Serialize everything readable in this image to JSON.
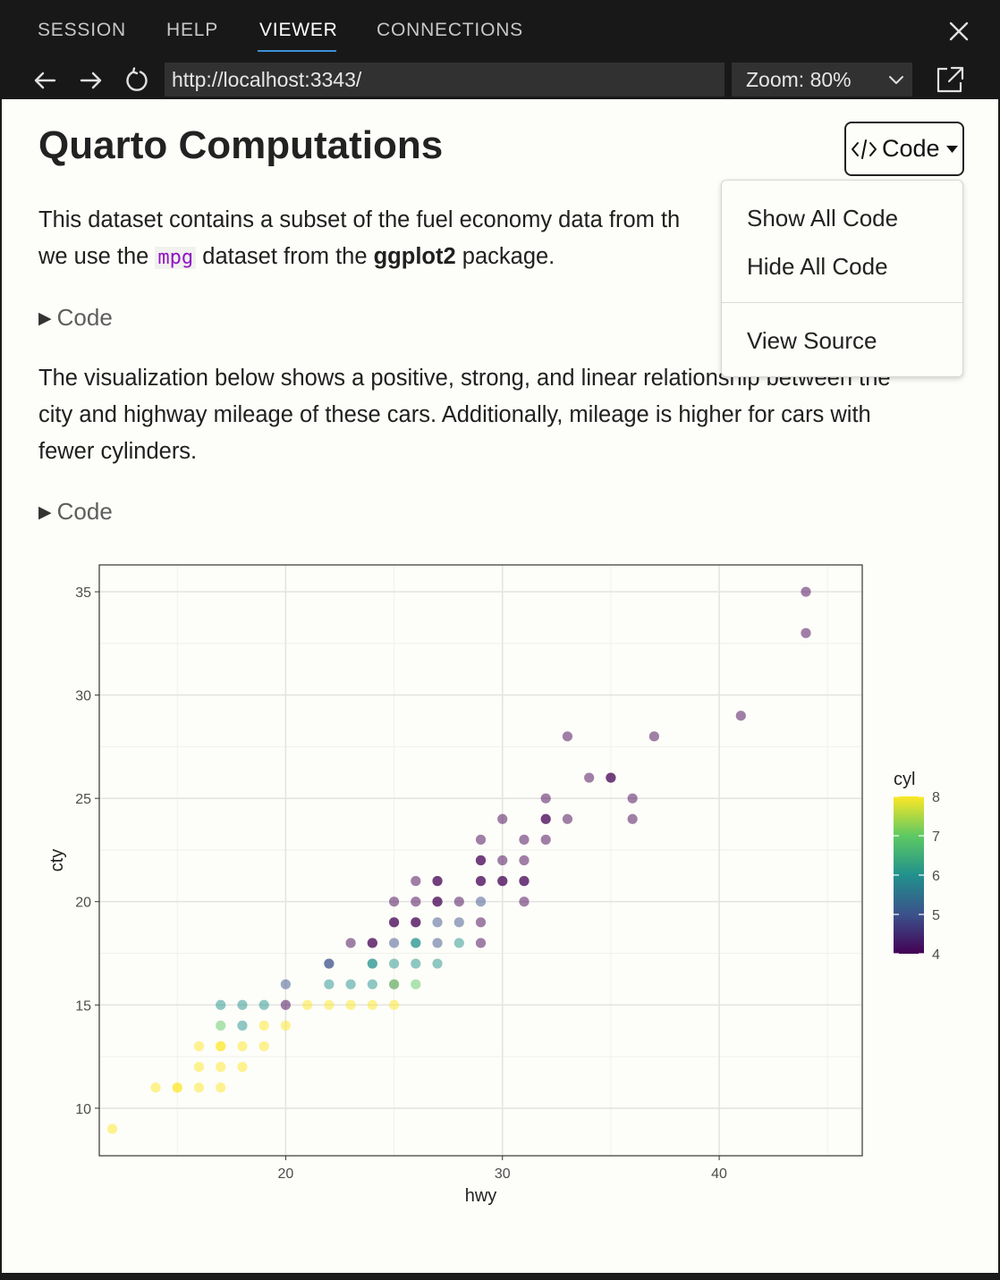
{
  "topbar": {
    "tabs": [
      {
        "label": "SESSION"
      },
      {
        "label": "HELP"
      },
      {
        "label": "VIEWER"
      },
      {
        "label": "CONNECTIONS"
      }
    ],
    "active_tab": "VIEWER"
  },
  "navbar": {
    "url": "http://localhost:3343/",
    "zoom": "Zoom: 80%"
  },
  "page": {
    "title": "Quarto Computations",
    "para1": {
      "line1": "This dataset contains a subset of the fuel economy data from th",
      "line2_a": "we use the ",
      "line2_code": "mpg",
      "line2_b": " dataset from the ",
      "line2_bold": "ggplot2",
      "line2_c": " package."
    },
    "code_toggle_label": "Code",
    "para2": {
      "line1": "The visualization below shows a positive, strong, and linear relationship between the",
      "line2": "city and highway mileage of these cars. Additionally, mileage is higher for cars with",
      "line3": "fewer cylinders."
    }
  },
  "code_menu": {
    "button_label": "Code",
    "items": [
      "Show All Code",
      "Hide All Code",
      "View Source"
    ]
  },
  "colors": {
    "accent": "#3d8fd6",
    "inline_code": "#8f14c4",
    "viridis_4": "#440154",
    "viridis_8": "#fde725"
  },
  "chart_data": {
    "type": "scatter",
    "title": "",
    "xlabel": "hwy",
    "ylabel": "cty",
    "xlim": [
      11.4,
      46.6
    ],
    "ylim": [
      7.7,
      36.3
    ],
    "xticks": [
      20,
      30,
      40
    ],
    "yticks": [
      10,
      15,
      20,
      25,
      30,
      35
    ],
    "grid": true,
    "legend": {
      "title": "cyl",
      "labels": [
        4,
        5,
        6,
        7,
        8
      ],
      "placement": "right"
    },
    "color_scale": "viridis",
    "points": [
      {
        "x": 44,
        "y": 35,
        "cyl": 4
      },
      {
        "x": 44,
        "y": 33,
        "cyl": 4
      },
      {
        "x": 41,
        "y": 29,
        "cyl": 4
      },
      {
        "x": 37,
        "y": 28,
        "cyl": 4
      },
      {
        "x": 33,
        "y": 28,
        "cyl": 4
      },
      {
        "x": 35,
        "y": 26,
        "cyl": 4
      },
      {
        "x": 35,
        "y": 26,
        "cyl": 4
      },
      {
        "x": 34,
        "y": 26,
        "cyl": 4
      },
      {
        "x": 36,
        "y": 25,
        "cyl": 4
      },
      {
        "x": 32,
        "y": 25,
        "cyl": 4
      },
      {
        "x": 36,
        "y": 24,
        "cyl": 4
      },
      {
        "x": 33,
        "y": 24,
        "cyl": 4
      },
      {
        "x": 32,
        "y": 24,
        "cyl": 4
      },
      {
        "x": 32,
        "y": 24,
        "cyl": 4
      },
      {
        "x": 30,
        "y": 24,
        "cyl": 4
      },
      {
        "x": 32,
        "y": 23,
        "cyl": 4
      },
      {
        "x": 31,
        "y": 23,
        "cyl": 4
      },
      {
        "x": 29,
        "y": 23,
        "cyl": 4
      },
      {
        "x": 29,
        "y": 22,
        "cyl": 4
      },
      {
        "x": 29,
        "y": 22,
        "cyl": 4
      },
      {
        "x": 30,
        "y": 22,
        "cyl": 4
      },
      {
        "x": 31,
        "y": 22,
        "cyl": 4
      },
      {
        "x": 29,
        "y": 21,
        "cyl": 4
      },
      {
        "x": 29,
        "y": 21,
        "cyl": 4
      },
      {
        "x": 30,
        "y": 21,
        "cyl": 4
      },
      {
        "x": 30,
        "y": 21,
        "cyl": 4
      },
      {
        "x": 31,
        "y": 21,
        "cyl": 4
      },
      {
        "x": 31,
        "y": 21,
        "cyl": 4
      },
      {
        "x": 26,
        "y": 21,
        "cyl": 4
      },
      {
        "x": 27,
        "y": 21,
        "cyl": 4
      },
      {
        "x": 27,
        "y": 21,
        "cyl": 4
      },
      {
        "x": 31,
        "y": 20,
        "cyl": 4
      },
      {
        "x": 29,
        "y": 20,
        "cyl": 5
      },
      {
        "x": 28,
        "y": 20,
        "cyl": 4
      },
      {
        "x": 27,
        "y": 20,
        "cyl": 4
      },
      {
        "x": 27,
        "y": 20,
        "cyl": 4
      },
      {
        "x": 26,
        "y": 20,
        "cyl": 4
      },
      {
        "x": 25,
        "y": 20,
        "cyl": 4
      },
      {
        "x": 29,
        "y": 19,
        "cyl": 4
      },
      {
        "x": 28,
        "y": 19,
        "cyl": 5
      },
      {
        "x": 27,
        "y": 19,
        "cyl": 5
      },
      {
        "x": 26,
        "y": 19,
        "cyl": 4
      },
      {
        "x": 26,
        "y": 19,
        "cyl": 4
      },
      {
        "x": 25,
        "y": 19,
        "cyl": 4
      },
      {
        "x": 25,
        "y": 19,
        "cyl": 4
      },
      {
        "x": 29,
        "y": 18,
        "cyl": 4
      },
      {
        "x": 28,
        "y": 18,
        "cyl": 6
      },
      {
        "x": 27,
        "y": 18,
        "cyl": 5
      },
      {
        "x": 26,
        "y": 18,
        "cyl": 6
      },
      {
        "x": 26,
        "y": 18,
        "cyl": 6
      },
      {
        "x": 25,
        "y": 18,
        "cyl": 5
      },
      {
        "x": 24,
        "y": 18,
        "cyl": 4
      },
      {
        "x": 24,
        "y": 18,
        "cyl": 4
      },
      {
        "x": 23,
        "y": 18,
        "cyl": 4
      },
      {
        "x": 27,
        "y": 17,
        "cyl": 6
      },
      {
        "x": 26,
        "y": 17,
        "cyl": 6
      },
      {
        "x": 25,
        "y": 17,
        "cyl": 6
      },
      {
        "x": 24,
        "y": 17,
        "cyl": 6
      },
      {
        "x": 24,
        "y": 17,
        "cyl": 6
      },
      {
        "x": 22,
        "y": 17,
        "cyl": 5
      },
      {
        "x": 22,
        "y": 17,
        "cyl": 5
      },
      {
        "x": 26,
        "y": 16,
        "cyl": 7
      },
      {
        "x": 25,
        "y": 16,
        "cyl": 8
      },
      {
        "x": 25,
        "y": 16,
        "cyl": 6
      },
      {
        "x": 24,
        "y": 16,
        "cyl": 6
      },
      {
        "x": 23,
        "y": 16,
        "cyl": 6
      },
      {
        "x": 22,
        "y": 16,
        "cyl": 6
      },
      {
        "x": 20,
        "y": 16,
        "cyl": 5
      },
      {
        "x": 25,
        "y": 15,
        "cyl": 8
      },
      {
        "x": 24,
        "y": 15,
        "cyl": 8
      },
      {
        "x": 23,
        "y": 15,
        "cyl": 8
      },
      {
        "x": 22,
        "y": 15,
        "cyl": 8
      },
      {
        "x": 21,
        "y": 15,
        "cyl": 8
      },
      {
        "x": 20,
        "y": 15,
        "cyl": 4
      },
      {
        "x": 19,
        "y": 15,
        "cyl": 6
      },
      {
        "x": 18,
        "y": 15,
        "cyl": 6
      },
      {
        "x": 17,
        "y": 15,
        "cyl": 6
      },
      {
        "x": 20,
        "y": 14,
        "cyl": 8
      },
      {
        "x": 19,
        "y": 14,
        "cyl": 8
      },
      {
        "x": 18,
        "y": 14,
        "cyl": 6
      },
      {
        "x": 17,
        "y": 14,
        "cyl": 7
      },
      {
        "x": 19,
        "y": 13,
        "cyl": 8
      },
      {
        "x": 18,
        "y": 13,
        "cyl": 8
      },
      {
        "x": 17,
        "y": 13,
        "cyl": 8
      },
      {
        "x": 17,
        "y": 13,
        "cyl": 8
      },
      {
        "x": 16,
        "y": 13,
        "cyl": 8
      },
      {
        "x": 18,
        "y": 12,
        "cyl": 8
      },
      {
        "x": 17,
        "y": 12,
        "cyl": 8
      },
      {
        "x": 16,
        "y": 12,
        "cyl": 8
      },
      {
        "x": 17,
        "y": 11,
        "cyl": 8
      },
      {
        "x": 16,
        "y": 11,
        "cyl": 8
      },
      {
        "x": 15,
        "y": 11,
        "cyl": 8
      },
      {
        "x": 15,
        "y": 11,
        "cyl": 8
      },
      {
        "x": 14,
        "y": 11,
        "cyl": 8
      },
      {
        "x": 12,
        "y": 9,
        "cyl": 8
      }
    ]
  }
}
